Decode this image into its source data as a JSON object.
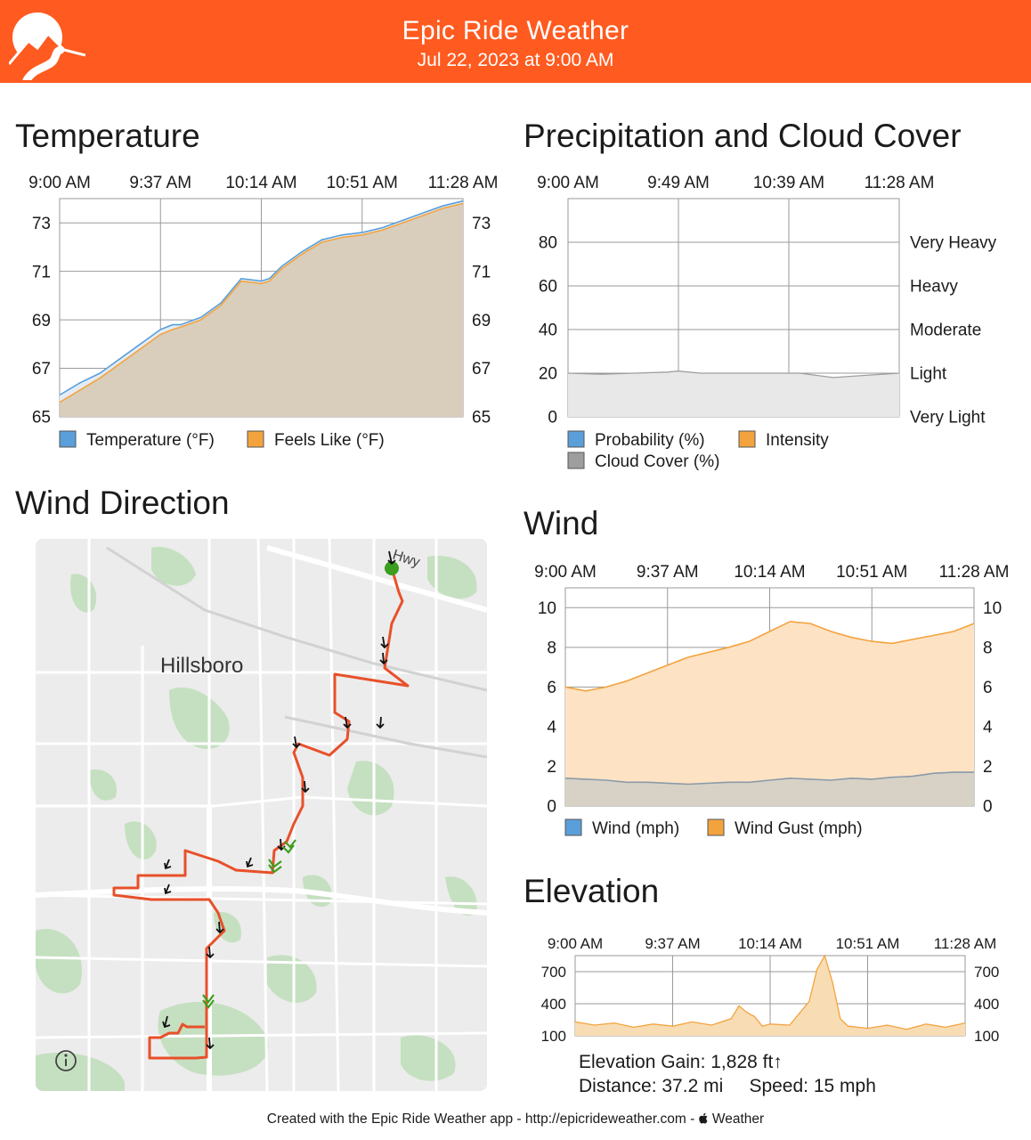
{
  "header": {
    "title": "Epic Ride Weather",
    "subtitle": "Jul 22, 2023 at 9:00 AM",
    "logo_icon": "mountain-road-logo-icon"
  },
  "colors": {
    "brand": "#FF5A1F",
    "route": "#E8502A",
    "temperature": "#5A9FD9",
    "feels_like": "#F3A33E",
    "feels_fill": "#D9CEBC",
    "cloud": "#9E9E9E",
    "gust_fill": "#FDE2C4",
    "elevation_fill": "#F8DDB4",
    "start_marker": "#3C9E1E"
  },
  "sections": {
    "temperature": "Temperature",
    "precipitation": "Precipitation and Cloud Cover",
    "wind_direction": "Wind Direction",
    "wind": "Wind",
    "elevation": "Elevation"
  },
  "chart_data": [
    {
      "id": "temperature",
      "type": "area",
      "x_ticks": [
        "9:00 AM",
        "9:37 AM",
        "10:14 AM",
        "10:51 AM",
        "11:28 AM"
      ],
      "x": [
        0,
        0.05,
        0.1,
        0.15,
        0.2,
        0.25,
        0.28,
        0.3,
        0.35,
        0.4,
        0.45,
        0.5,
        0.52,
        0.55,
        0.6,
        0.65,
        0.7,
        0.75,
        0.8,
        0.85,
        0.9,
        0.95,
        1.0
      ],
      "series": [
        {
          "name": "Temperature (°F)",
          "values": [
            65.9,
            66.4,
            66.8,
            67.4,
            68.0,
            68.6,
            68.8,
            68.8,
            69.1,
            69.7,
            70.7,
            70.6,
            70.7,
            71.2,
            71.8,
            72.3,
            72.5,
            72.6,
            72.8,
            73.1,
            73.4,
            73.7,
            73.9
          ]
        },
        {
          "name": "Feels Like (°F)",
          "values": [
            65.6,
            66.1,
            66.6,
            67.2,
            67.8,
            68.4,
            68.6,
            68.7,
            69.0,
            69.6,
            70.6,
            70.5,
            70.6,
            71.1,
            71.7,
            72.2,
            72.4,
            72.5,
            72.7,
            73.0,
            73.3,
            73.6,
            73.8
          ]
        }
      ],
      "y_ticks": [
        65,
        67,
        69,
        71,
        73
      ],
      "ylim": [
        65,
        74
      ],
      "legend": "bottom-left",
      "grid": true
    },
    {
      "id": "precipitation",
      "type": "area",
      "x_ticks": [
        "9:00 AM",
        "9:49 AM",
        "10:39 AM",
        "11:28 AM"
      ],
      "x": [
        0,
        0.1,
        0.2,
        0.3,
        0.33,
        0.4,
        0.5,
        0.6,
        0.7,
        0.8,
        0.9,
        1.0
      ],
      "series": [
        {
          "name": "Probability (%)",
          "values": [
            0,
            0,
            0,
            0,
            0,
            0,
            0,
            0,
            0,
            0,
            0,
            0
          ]
        },
        {
          "name": "Intensity",
          "values": [
            0,
            0,
            0,
            0,
            0,
            0,
            0,
            0,
            0,
            0,
            0,
            0
          ]
        },
        {
          "name": "Cloud Cover (%)",
          "values": [
            20,
            19.5,
            20,
            20.5,
            21,
            20,
            20,
            20,
            20,
            18,
            19,
            20
          ]
        }
      ],
      "y_ticks": [
        0,
        20,
        40,
        60,
        80
      ],
      "right_labels": [
        "Very Light",
        "Light",
        "Moderate",
        "Heavy",
        "Very Heavy"
      ],
      "ylim": [
        0,
        100
      ],
      "legend": "bottom-left",
      "grid": true
    },
    {
      "id": "wind",
      "type": "area",
      "x_ticks": [
        "9:00 AM",
        "9:37 AM",
        "10:14 AM",
        "10:51 AM",
        "11:28 AM"
      ],
      "x": [
        0,
        0.05,
        0.1,
        0.15,
        0.2,
        0.3,
        0.4,
        0.45,
        0.5,
        0.55,
        0.6,
        0.65,
        0.7,
        0.75,
        0.8,
        0.85,
        0.9,
        0.95,
        1.0
      ],
      "series": [
        {
          "name": "Wind (mph)",
          "values": [
            1.4,
            1.35,
            1.3,
            1.2,
            1.2,
            1.1,
            1.2,
            1.2,
            1.3,
            1.4,
            1.35,
            1.3,
            1.4,
            1.35,
            1.45,
            1.5,
            1.65,
            1.7,
            1.7
          ]
        },
        {
          "name": "Wind Gust (mph)",
          "values": [
            6.0,
            5.8,
            6.0,
            6.3,
            6.7,
            7.5,
            8.0,
            8.3,
            8.8,
            9.3,
            9.2,
            8.8,
            8.5,
            8.3,
            8.2,
            8.4,
            8.6,
            8.8,
            9.2
          ]
        }
      ],
      "y_ticks": [
        0,
        2,
        4,
        6,
        8,
        10
      ],
      "ylim": [
        0,
        11
      ],
      "legend": "bottom-left",
      "grid": true
    },
    {
      "id": "elevation",
      "type": "area",
      "x_ticks": [
        "9:00 AM",
        "9:37 AM",
        "10:14 AM",
        "10:51 AM",
        "11:28 AM"
      ],
      "x": [
        0,
        0.05,
        0.1,
        0.15,
        0.2,
        0.25,
        0.3,
        0.35,
        0.4,
        0.42,
        0.44,
        0.46,
        0.48,
        0.5,
        0.55,
        0.6,
        0.62,
        0.64,
        0.66,
        0.68,
        0.7,
        0.75,
        0.8,
        0.85,
        0.9,
        0.95,
        1.0
      ],
      "series": [
        {
          "name": "Elevation",
          "values": [
            230,
            200,
            220,
            180,
            210,
            190,
            230,
            200,
            260,
            380,
            320,
            280,
            190,
            210,
            200,
            420,
            720,
            850,
            600,
            260,
            190,
            170,
            200,
            160,
            210,
            180,
            220
          ]
        }
      ],
      "y_ticks": [
        100,
        400,
        700
      ],
      "ylim": [
        100,
        850
      ],
      "grid": true
    }
  ],
  "legends": {
    "temperature": [
      {
        "label": "Temperature (°F)",
        "color": "#5A9FD9"
      },
      {
        "label": "Feels Like (°F)",
        "color": "#F3A33E"
      }
    ],
    "precipitation": [
      {
        "label": "Probability (%)",
        "color": "#5A9FD9"
      },
      {
        "label": "Intensity",
        "color": "#F3A33E"
      },
      {
        "label": "Cloud Cover (%)",
        "color": "#9E9E9E"
      }
    ],
    "wind": [
      {
        "label": "Wind (mph)",
        "color": "#5A9FD9"
      },
      {
        "label": "Wind Gust (mph)",
        "color": "#F3A33E"
      }
    ]
  },
  "map": {
    "city_label": "Hillsboro",
    "road_label": "Hwy",
    "info_icon": "info-icon"
  },
  "stats": {
    "elevation_gain": "Elevation Gain: 1,828 ft↑",
    "distance": "Distance: 37.2 mi",
    "speed": "Speed: 15 mph"
  },
  "footer": {
    "text": "Created with the Epic Ride Weather app - http://epicrideweather.com - ",
    "weather_brand": "Weather",
    "weather_icon": "apple-logo-icon"
  }
}
